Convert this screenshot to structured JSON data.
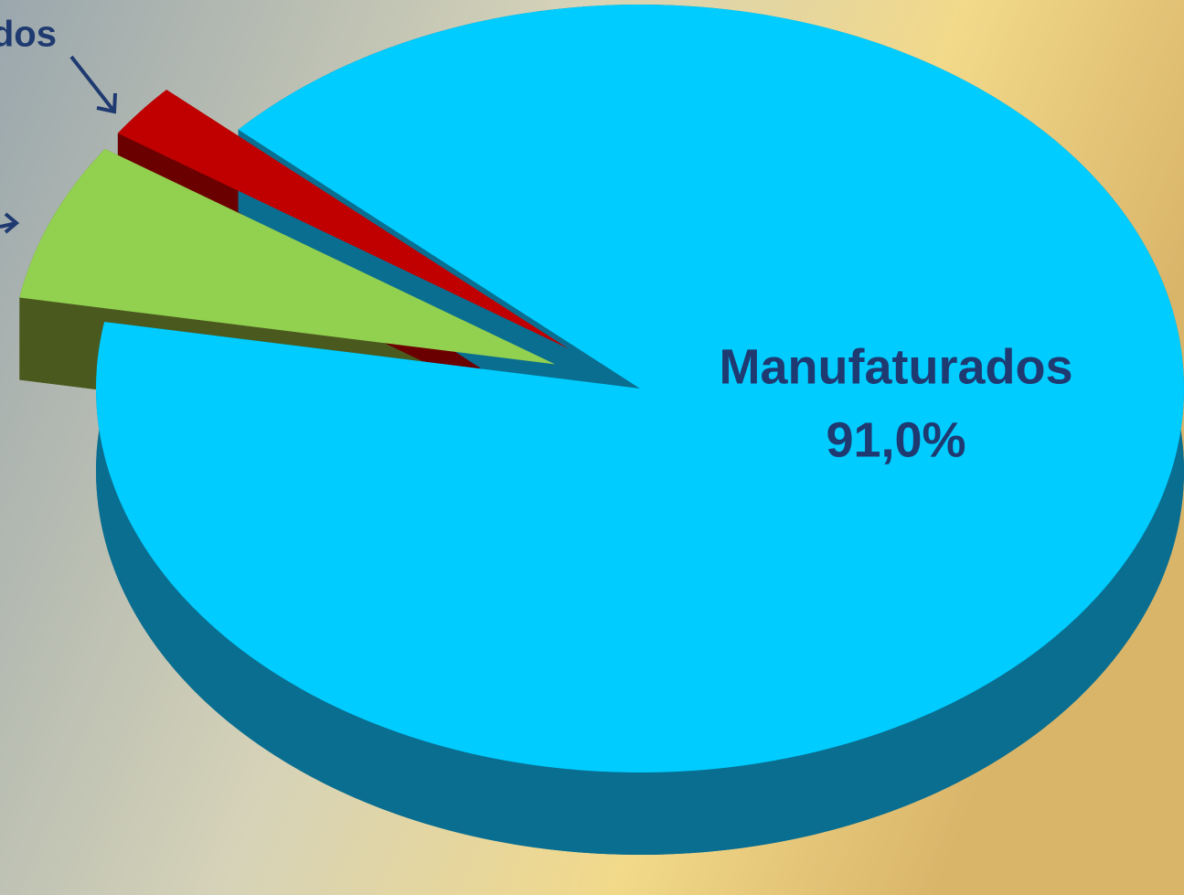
{
  "chart_data": {
    "type": "pie",
    "categories": [
      null,
      "dos",
      "Manufaturados"
    ],
    "values": [
      6.7,
      2.3,
      91.0
    ],
    "value_labels": [
      null,
      null,
      "91,0%"
    ],
    "colors": [
      "#92d050",
      "#c00000",
      "#00ccff"
    ]
  }
}
